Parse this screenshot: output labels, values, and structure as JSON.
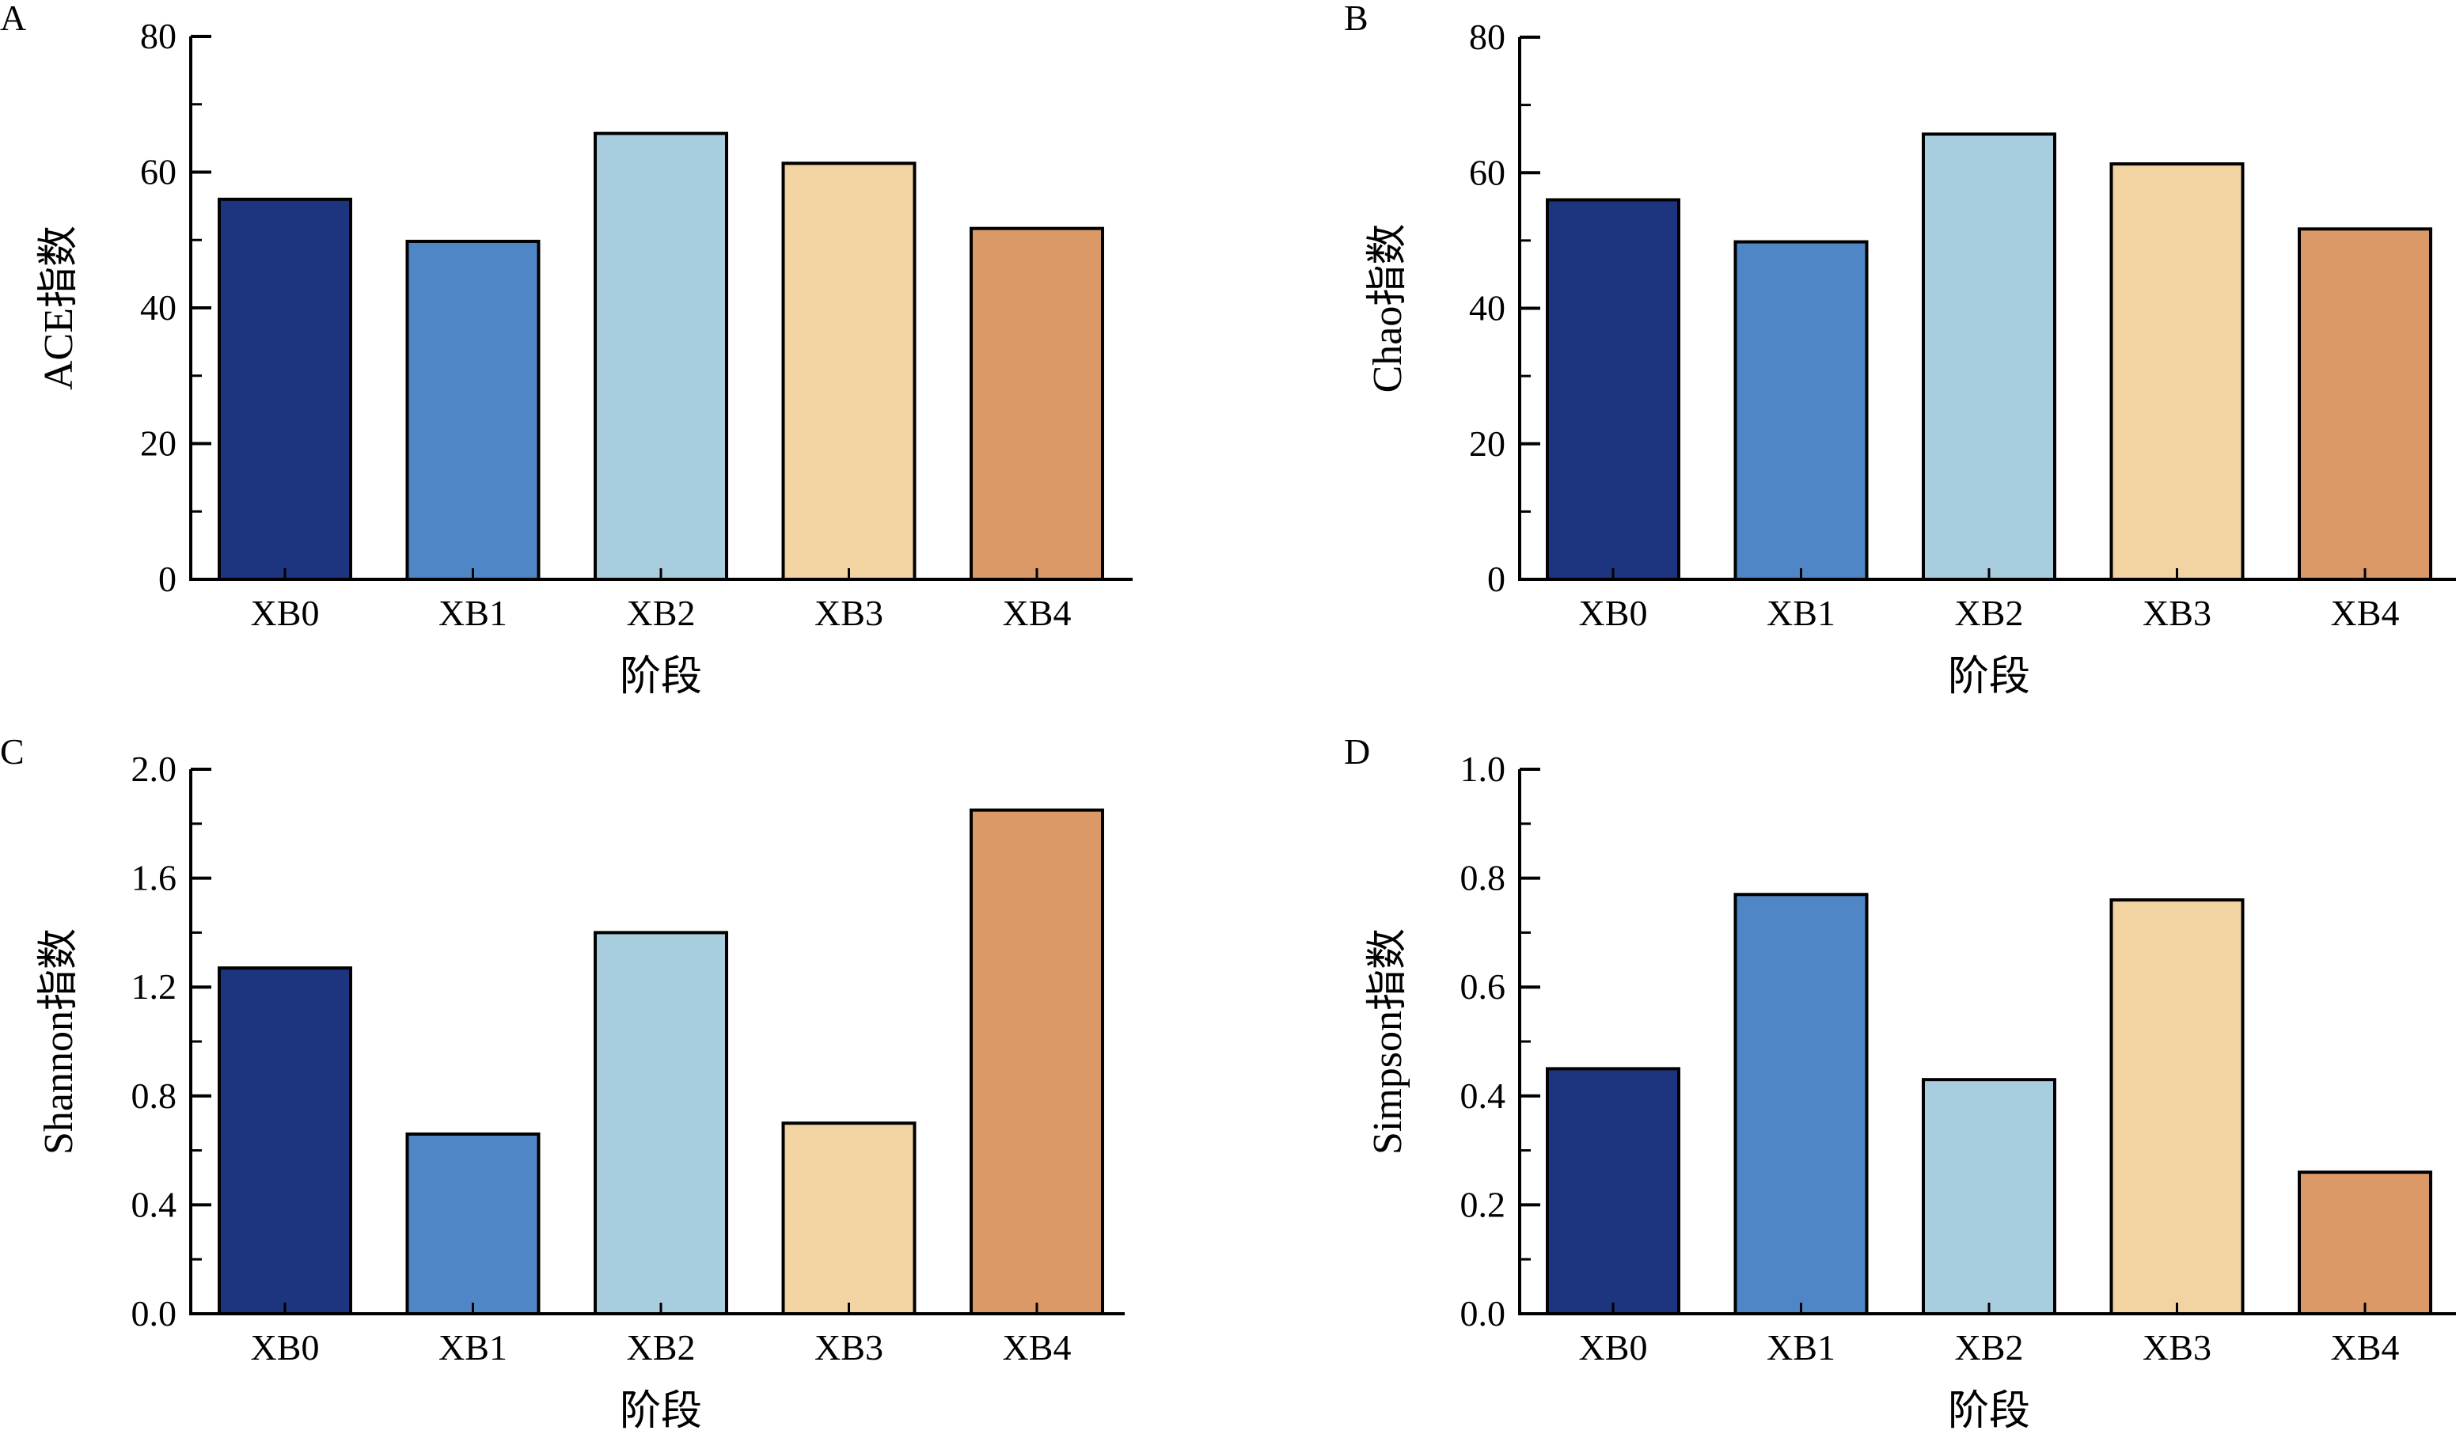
{
  "chart_data": [
    {
      "panel": "A",
      "type": "bar",
      "categories": [
        "XB0",
        "XB1",
        "XB2",
        "XB3",
        "XB4"
      ],
      "values": [
        56.0,
        49.8,
        65.7,
        61.3,
        51.7
      ],
      "xlabel": "阶段",
      "ylabel": "ACE指数",
      "ylim": [
        0,
        80
      ],
      "yticks": [
        "0",
        "20",
        "40",
        "60",
        "80"
      ],
      "grid": false
    },
    {
      "panel": "B",
      "type": "bar",
      "categories": [
        "XB0",
        "XB1",
        "XB2",
        "XB3",
        "XB4"
      ],
      "values": [
        56.0,
        49.8,
        65.7,
        61.3,
        51.7
      ],
      "xlabel": "阶段",
      "ylabel": "Chao指数",
      "ylim": [
        0,
        80
      ],
      "yticks": [
        "0",
        "20",
        "40",
        "60",
        "80"
      ],
      "grid": false
    },
    {
      "panel": "C",
      "type": "bar",
      "categories": [
        "XB0",
        "XB1",
        "XB2",
        "XB3",
        "XB4"
      ],
      "values": [
        1.27,
        0.66,
        1.4,
        0.7,
        1.85
      ],
      "xlabel": "阶段",
      "ylabel": "Shannon指数",
      "ylim": [
        0,
        2.0
      ],
      "yticks": [
        "0.0",
        "0.4",
        "0.8",
        "1.2",
        "1.6",
        "2.0"
      ],
      "grid": false
    },
    {
      "panel": "D",
      "type": "bar",
      "categories": [
        "XB0",
        "XB1",
        "XB2",
        "XB3",
        "XB4"
      ],
      "values": [
        0.45,
        0.77,
        0.43,
        0.76,
        0.26
      ],
      "xlabel": "阶段",
      "ylabel": "Simpson指数",
      "ylim": [
        0,
        1.0
      ],
      "yticks": [
        "0.0",
        "0.2",
        "0.4",
        "0.6",
        "0.8",
        "1.0"
      ],
      "grid": false
    }
  ],
  "colors": [
    "#1c357e",
    "#4f86c6",
    "#a8cddf",
    "#f1d4a2",
    "#da9966"
  ]
}
